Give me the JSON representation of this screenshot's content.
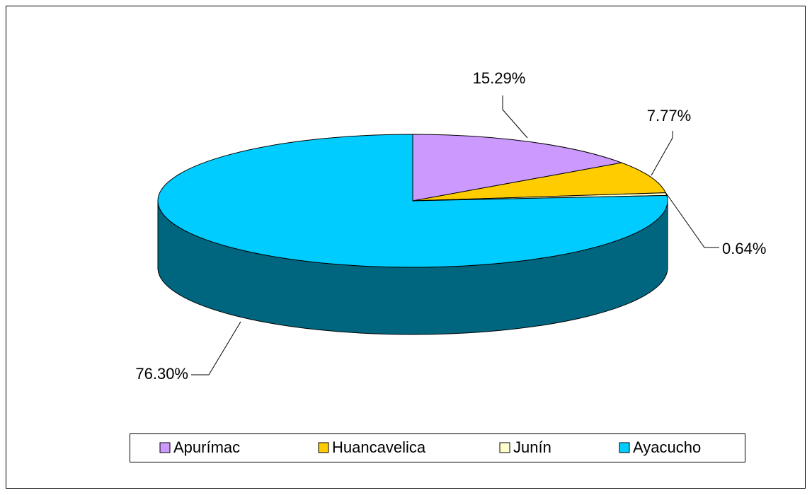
{
  "chart_data": {
    "type": "pie",
    "categories": [
      "Apurímac",
      "Huancavelica",
      "Junín",
      "Ayacucho"
    ],
    "values": [
      15.29,
      7.77,
      0.64,
      76.3
    ],
    "value_labels": [
      "15.29%",
      "7.77%",
      "0.64%",
      "76.30%"
    ],
    "colors": [
      "#cc99ff",
      "#ffcc00",
      "#ffffcc",
      "#00ccff"
    ],
    "legend": "bottom"
  }
}
